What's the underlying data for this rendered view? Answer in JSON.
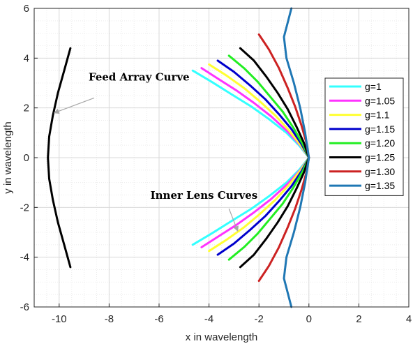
{
  "chart_data": {
    "type": "line",
    "xlabel": "x in wavelength",
    "ylabel": "y in wavelength",
    "xlim": [
      -11,
      4
    ],
    "ylim": [
      -6,
      6
    ],
    "x_ticks": [
      -10,
      -8,
      -6,
      -4,
      -2,
      0,
      2,
      4
    ],
    "y_ticks": [
      -6,
      -4,
      -2,
      0,
      2,
      4,
      6
    ],
    "x_tick_labels": [
      "-10",
      "-8",
      "-6",
      "-4",
      "-2",
      "0",
      "2",
      "4"
    ],
    "y_tick_labels": [
      "-6",
      "-4",
      "-2",
      "0",
      "2",
      "4",
      "6"
    ],
    "grid": "on (major and minor)",
    "legend_placement": "right",
    "series": [
      {
        "name": "g=1",
        "color": "#33ffff",
        "points": [
          [
            -4.65,
            3.5
          ],
          [
            -3.9,
            3.05
          ],
          [
            -3.1,
            2.55
          ],
          [
            -2.3,
            2.05
          ],
          [
            -1.6,
            1.55
          ],
          [
            -0.9,
            1.0
          ],
          [
            -0.4,
            0.5
          ],
          [
            0,
            0
          ],
          [
            -0.4,
            -0.5
          ],
          [
            -0.9,
            -1.0
          ],
          [
            -1.6,
            -1.55
          ],
          [
            -2.3,
            -2.05
          ],
          [
            -3.1,
            -2.55
          ],
          [
            -3.9,
            -3.05
          ],
          [
            -4.65,
            -3.5
          ]
        ]
      },
      {
        "name": "g=1.05",
        "color": "#ff33ff",
        "points": [
          [
            -4.3,
            3.6
          ],
          [
            -3.6,
            3.15
          ],
          [
            -2.9,
            2.7
          ],
          [
            -2.2,
            2.2
          ],
          [
            -1.5,
            1.65
          ],
          [
            -0.85,
            1.05
          ],
          [
            -0.35,
            0.5
          ],
          [
            0,
            0
          ],
          [
            -0.35,
            -0.5
          ],
          [
            -0.85,
            -1.05
          ],
          [
            -1.5,
            -1.65
          ],
          [
            -2.2,
            -2.2
          ],
          [
            -2.9,
            -2.7
          ],
          [
            -3.6,
            -3.15
          ],
          [
            -4.3,
            -3.6
          ]
        ]
      },
      {
        "name": "g=1.1",
        "color": "#ffff33",
        "points": [
          [
            -4.0,
            3.75
          ],
          [
            -3.3,
            3.3
          ],
          [
            -2.6,
            2.8
          ],
          [
            -1.95,
            2.25
          ],
          [
            -1.35,
            1.7
          ],
          [
            -0.8,
            1.1
          ],
          [
            -0.33,
            0.5
          ],
          [
            0,
            0
          ],
          [
            -0.33,
            -0.5
          ],
          [
            -0.8,
            -1.1
          ],
          [
            -1.35,
            -1.7
          ],
          [
            -1.95,
            -2.25
          ],
          [
            -2.6,
            -2.8
          ],
          [
            -3.3,
            -3.3
          ],
          [
            -4.0,
            -3.75
          ]
        ]
      },
      {
        "name": "g=1.15",
        "color": "#0000cc",
        "points": [
          [
            -3.65,
            3.9
          ],
          [
            -3.0,
            3.45
          ],
          [
            -2.35,
            2.9
          ],
          [
            -1.75,
            2.35
          ],
          [
            -1.2,
            1.75
          ],
          [
            -0.7,
            1.15
          ],
          [
            -0.3,
            0.55
          ],
          [
            0,
            0
          ],
          [
            -0.3,
            -0.55
          ],
          [
            -0.7,
            -1.15
          ],
          [
            -1.2,
            -1.75
          ],
          [
            -1.75,
            -2.35
          ],
          [
            -2.35,
            -2.9
          ],
          [
            -3.0,
            -3.45
          ],
          [
            -3.65,
            -3.9
          ]
        ]
      },
      {
        "name": "g=1.20",
        "color": "#22ee22",
        "points": [
          [
            -3.2,
            4.1
          ],
          [
            -2.6,
            3.6
          ],
          [
            -2.05,
            3.05
          ],
          [
            -1.55,
            2.45
          ],
          [
            -1.05,
            1.85
          ],
          [
            -0.62,
            1.2
          ],
          [
            -0.25,
            0.55
          ],
          [
            0,
            0
          ],
          [
            -0.25,
            -0.55
          ],
          [
            -0.62,
            -1.2
          ],
          [
            -1.05,
            -1.85
          ],
          [
            -1.55,
            -2.45
          ],
          [
            -2.05,
            -3.05
          ],
          [
            -2.6,
            -3.6
          ],
          [
            -3.2,
            -4.1
          ]
        ]
      },
      {
        "name": "g=1.25",
        "color": "#000000",
        "points": [
          [
            -2.75,
            4.4
          ],
          [
            -2.2,
            3.9
          ],
          [
            -1.7,
            3.25
          ],
          [
            -1.25,
            2.6
          ],
          [
            -0.85,
            1.95
          ],
          [
            -0.5,
            1.25
          ],
          [
            -0.2,
            0.6
          ],
          [
            0,
            0
          ],
          [
            -0.2,
            -0.6
          ],
          [
            -0.5,
            -1.25
          ],
          [
            -0.85,
            -1.95
          ],
          [
            -1.25,
            -2.6
          ],
          [
            -1.7,
            -3.25
          ],
          [
            -2.2,
            -3.9
          ],
          [
            -2.75,
            -4.4
          ]
        ]
      },
      {
        "name": "g=1.30",
        "color": "#cc2222",
        "points": [
          [
            -2.0,
            4.95
          ],
          [
            -1.6,
            4.35
          ],
          [
            -1.2,
            3.6
          ],
          [
            -0.85,
            2.8
          ],
          [
            -0.55,
            2.05
          ],
          [
            -0.3,
            1.3
          ],
          [
            -0.1,
            0.6
          ],
          [
            0,
            0
          ],
          [
            -0.1,
            -0.6
          ],
          [
            -0.3,
            -1.3
          ],
          [
            -0.55,
            -2.05
          ],
          [
            -0.85,
            -2.8
          ],
          [
            -1.2,
            -3.6
          ],
          [
            -1.6,
            -4.35
          ],
          [
            -2.0,
            -4.95
          ]
        ]
      },
      {
        "name": "g=1.35",
        "color": "#1f77b4",
        "points": [
          [
            -0.7,
            6.0
          ],
          [
            -1.0,
            4.85
          ],
          [
            -0.9,
            4.0
          ],
          [
            -0.6,
            3.0
          ],
          [
            -0.35,
            2.0
          ],
          [
            -0.15,
            1.0
          ],
          [
            0,
            0
          ],
          [
            -0.15,
            -1.0
          ],
          [
            -0.35,
            -2.0
          ],
          [
            -0.6,
            -3.0
          ],
          [
            -0.9,
            -4.0
          ],
          [
            -1.0,
            -4.85
          ],
          [
            -0.7,
            -6.0
          ]
        ]
      },
      {
        "name": "",
        "color": "#000000",
        "points": [
          [
            -9.55,
            4.4
          ],
          [
            -9.8,
            3.5
          ],
          [
            -10.05,
            2.6
          ],
          [
            -10.25,
            1.7
          ],
          [
            -10.4,
            0.85
          ],
          [
            -10.45,
            0
          ],
          [
            -10.4,
            -0.85
          ],
          [
            -10.25,
            -1.7
          ],
          [
            -10.05,
            -2.6
          ],
          [
            -9.8,
            -3.5
          ],
          [
            -9.55,
            -4.4
          ]
        ]
      }
    ],
    "annotations": [
      {
        "text": "Feed Array Curve",
        "text_at": [
          -6.8,
          3.1
        ],
        "arrow_from": [
          -8.6,
          2.4
        ],
        "arrow_to": [
          -10.2,
          1.8
        ]
      },
      {
        "text": "Inner Lens Curves",
        "text_at": [
          -4.2,
          -1.65
        ],
        "arrow_from": [
          -3.2,
          -2.05
        ],
        "arrow_to": [
          -2.85,
          -2.95
        ]
      }
    ]
  }
}
